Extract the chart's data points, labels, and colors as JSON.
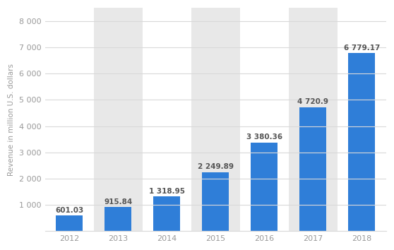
{
  "categories": [
    "2012",
    "2013",
    "2014",
    "2015",
    "2016",
    "2017",
    "2018"
  ],
  "values": [
    601.03,
    915.84,
    1318.95,
    2249.89,
    3380.36,
    4720.9,
    6779.17
  ],
  "labels": [
    "601.03",
    "915.84",
    "1 318.95",
    "2 249.89",
    "3 380.36",
    "4 720.9",
    "6 779.17"
  ],
  "bar_color": "#2f7ed8",
  "figure_bg_color": "#ffffff",
  "plot_bg_color": "#ffffff",
  "shade_color": "#e8e8e8",
  "ylabel": "Revenue in million U.S. dollars",
  "ylim": [
    0,
    8500
  ],
  "yticks": [
    0,
    1000,
    2000,
    3000,
    4000,
    5000,
    6000,
    7000,
    8000
  ],
  "ytick_labels": [
    "",
    "1 000",
    "2 000",
    "3 000",
    "4 000",
    "5 000",
    "6 000",
    "7 000",
    "8 000"
  ],
  "grid_color": "#d9d9d9",
  "label_fontsize": 7.5,
  "axis_fontsize": 8,
  "ylabel_fontsize": 7.5,
  "bar_width": 0.55,
  "label_color": "#555555",
  "tick_color": "#999999",
  "shaded_indices": [
    1,
    3,
    5
  ]
}
